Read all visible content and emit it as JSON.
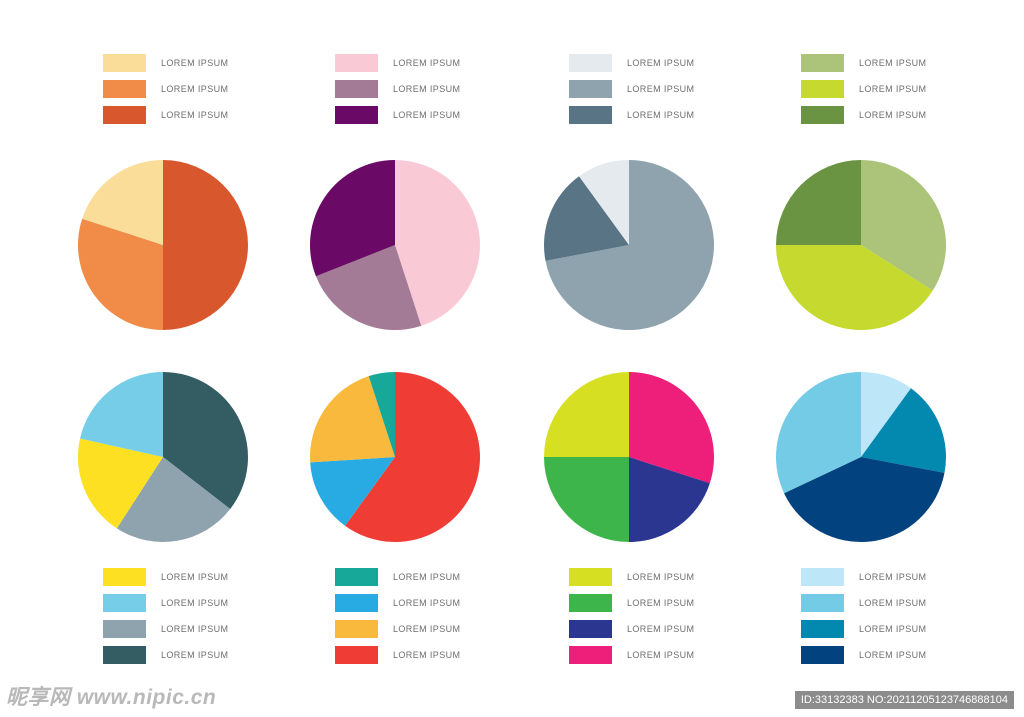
{
  "chart_data": [
    {
      "type": "pie",
      "title": "",
      "slices": [
        {
          "label": "LOREM IPSUM",
          "value": 50,
          "color": "#d9572c"
        },
        {
          "label": "LOREM IPSUM",
          "value": 30,
          "color": "#f08c48"
        },
        {
          "label": "LOREM IPSUM",
          "value": 20,
          "color": "#fadd98"
        }
      ],
      "legend": [
        {
          "label": "LOREM IPSUM",
          "color": "#fadd98"
        },
        {
          "label": "LOREM IPSUM",
          "color": "#f08c48"
        },
        {
          "label": "LOREM IPSUM",
          "color": "#d9572c"
        }
      ]
    },
    {
      "type": "pie",
      "title": "",
      "slices": [
        {
          "label": "LOREM IPSUM",
          "value": 45,
          "color": "#f9c9d6"
        },
        {
          "label": "LOREM IPSUM",
          "value": 24,
          "color": "#a47b97"
        },
        {
          "label": "LOREM IPSUM",
          "value": 31,
          "color": "#6a0a66"
        }
      ],
      "legend": [
        {
          "label": "LOREM IPSUM",
          "color": "#f9c9d6"
        },
        {
          "label": "LOREM IPSUM",
          "color": "#a47b97"
        },
        {
          "label": "LOREM IPSUM",
          "color": "#6a0a66"
        }
      ]
    },
    {
      "type": "pie",
      "title": "",
      "slices": [
        {
          "label": "LOREM IPSUM",
          "value": 72,
          "color": "#8fa3ae"
        },
        {
          "label": "LOREM IPSUM",
          "value": 18,
          "color": "#597585"
        },
        {
          "label": "LOREM IPSUM",
          "value": 10,
          "color": "#e4eaee"
        }
      ],
      "legend": [
        {
          "label": "LOREM IPSUM",
          "color": "#e4eaee"
        },
        {
          "label": "LOREM IPSUM",
          "color": "#8fa3ae"
        },
        {
          "label": "LOREM IPSUM",
          "color": "#597585"
        }
      ]
    },
    {
      "type": "pie",
      "title": "",
      "slices": [
        {
          "label": "LOREM IPSUM",
          "value": 34,
          "color": "#acc47a"
        },
        {
          "label": "LOREM IPSUM",
          "value": 41,
          "color": "#c5d92f"
        },
        {
          "label": "LOREM IPSUM",
          "value": 25,
          "color": "#6a9441"
        }
      ],
      "legend": [
        {
          "label": "LOREM IPSUM",
          "color": "#acc47a"
        },
        {
          "label": "LOREM IPSUM",
          "color": "#c5d92f"
        },
        {
          "label": "LOREM IPSUM",
          "color": "#6a9441"
        }
      ]
    },
    {
      "type": "pie",
      "title": "",
      "slices": [
        {
          "label": "LOREM IPSUM",
          "value": 33,
          "color": "#335c63"
        },
        {
          "label": "LOREM IPSUM",
          "value": 22,
          "color": "#8fa3ae"
        },
        {
          "label": "LOREM IPSUM",
          "value": 18,
          "color": "#fde022"
        },
        {
          "label": "LOREM IPSUM",
          "value": 20,
          "color": "#76cde8"
        }
      ],
      "legend": [
        {
          "label": "LOREM IPSUM",
          "color": "#fde022"
        },
        {
          "label": "LOREM IPSUM",
          "color": "#76cde8"
        },
        {
          "label": "LOREM IPSUM",
          "color": "#8fa3ae"
        },
        {
          "label": "LOREM IPSUM",
          "color": "#335c63"
        }
      ]
    },
    {
      "type": "pie",
      "title": "",
      "slices": [
        {
          "label": "LOREM IPSUM",
          "value": 60,
          "color": "#ef3d35"
        },
        {
          "label": "LOREM IPSUM",
          "value": 14,
          "color": "#28abe2"
        },
        {
          "label": "LOREM IPSUM",
          "value": 21,
          "color": "#f8b93c"
        },
        {
          "label": "LOREM IPSUM",
          "value": 5,
          "color": "#17a899"
        }
      ],
      "legend": [
        {
          "label": "LOREM IPSUM",
          "color": "#17a899"
        },
        {
          "label": "LOREM IPSUM",
          "color": "#28abe2"
        },
        {
          "label": "LOREM IPSUM",
          "color": "#f8b93c"
        },
        {
          "label": "LOREM IPSUM",
          "color": "#ef3d35"
        }
      ]
    },
    {
      "type": "pie",
      "title": "",
      "slices": [
        {
          "label": "LOREM IPSUM",
          "value": 30,
          "color": "#ee1f7a"
        },
        {
          "label": "LOREM IPSUM",
          "value": 20,
          "color": "#2b3691"
        },
        {
          "label": "LOREM IPSUM",
          "value": 25,
          "color": "#3db54b"
        },
        {
          "label": "LOREM IPSUM",
          "value": 25,
          "color": "#d7df22"
        }
      ],
      "legend": [
        {
          "label": "LOREM IPSUM",
          "color": "#d7df22"
        },
        {
          "label": "LOREM IPSUM",
          "color": "#3db54b"
        },
        {
          "label": "LOREM IPSUM",
          "color": "#2b3691"
        },
        {
          "label": "LOREM IPSUM",
          "color": "#ee1f7a"
        }
      ]
    },
    {
      "type": "pie",
      "title": "",
      "slices": [
        {
          "label": "LOREM IPSUM",
          "value": 10,
          "color": "#bde6f9"
        },
        {
          "label": "LOREM IPSUM",
          "value": 18,
          "color": "#0388b0"
        },
        {
          "label": "LOREM IPSUM",
          "value": 40,
          "color": "#01427f"
        },
        {
          "label": "LOREM IPSUM",
          "value": 32,
          "color": "#73cbe6"
        }
      ],
      "legend": [
        {
          "label": "LOREM IPSUM",
          "color": "#bde6f9"
        },
        {
          "label": "LOREM IPSUM",
          "color": "#73cbe6"
        },
        {
          "label": "LOREM IPSUM",
          "color": "#0388b0"
        },
        {
          "label": "LOREM IPSUM",
          "color": "#01427f"
        }
      ]
    }
  ],
  "watermark": {
    "left": "昵享网 www.nipic.cn",
    "right": "ID:33132383 NO:20211205123746888104"
  }
}
